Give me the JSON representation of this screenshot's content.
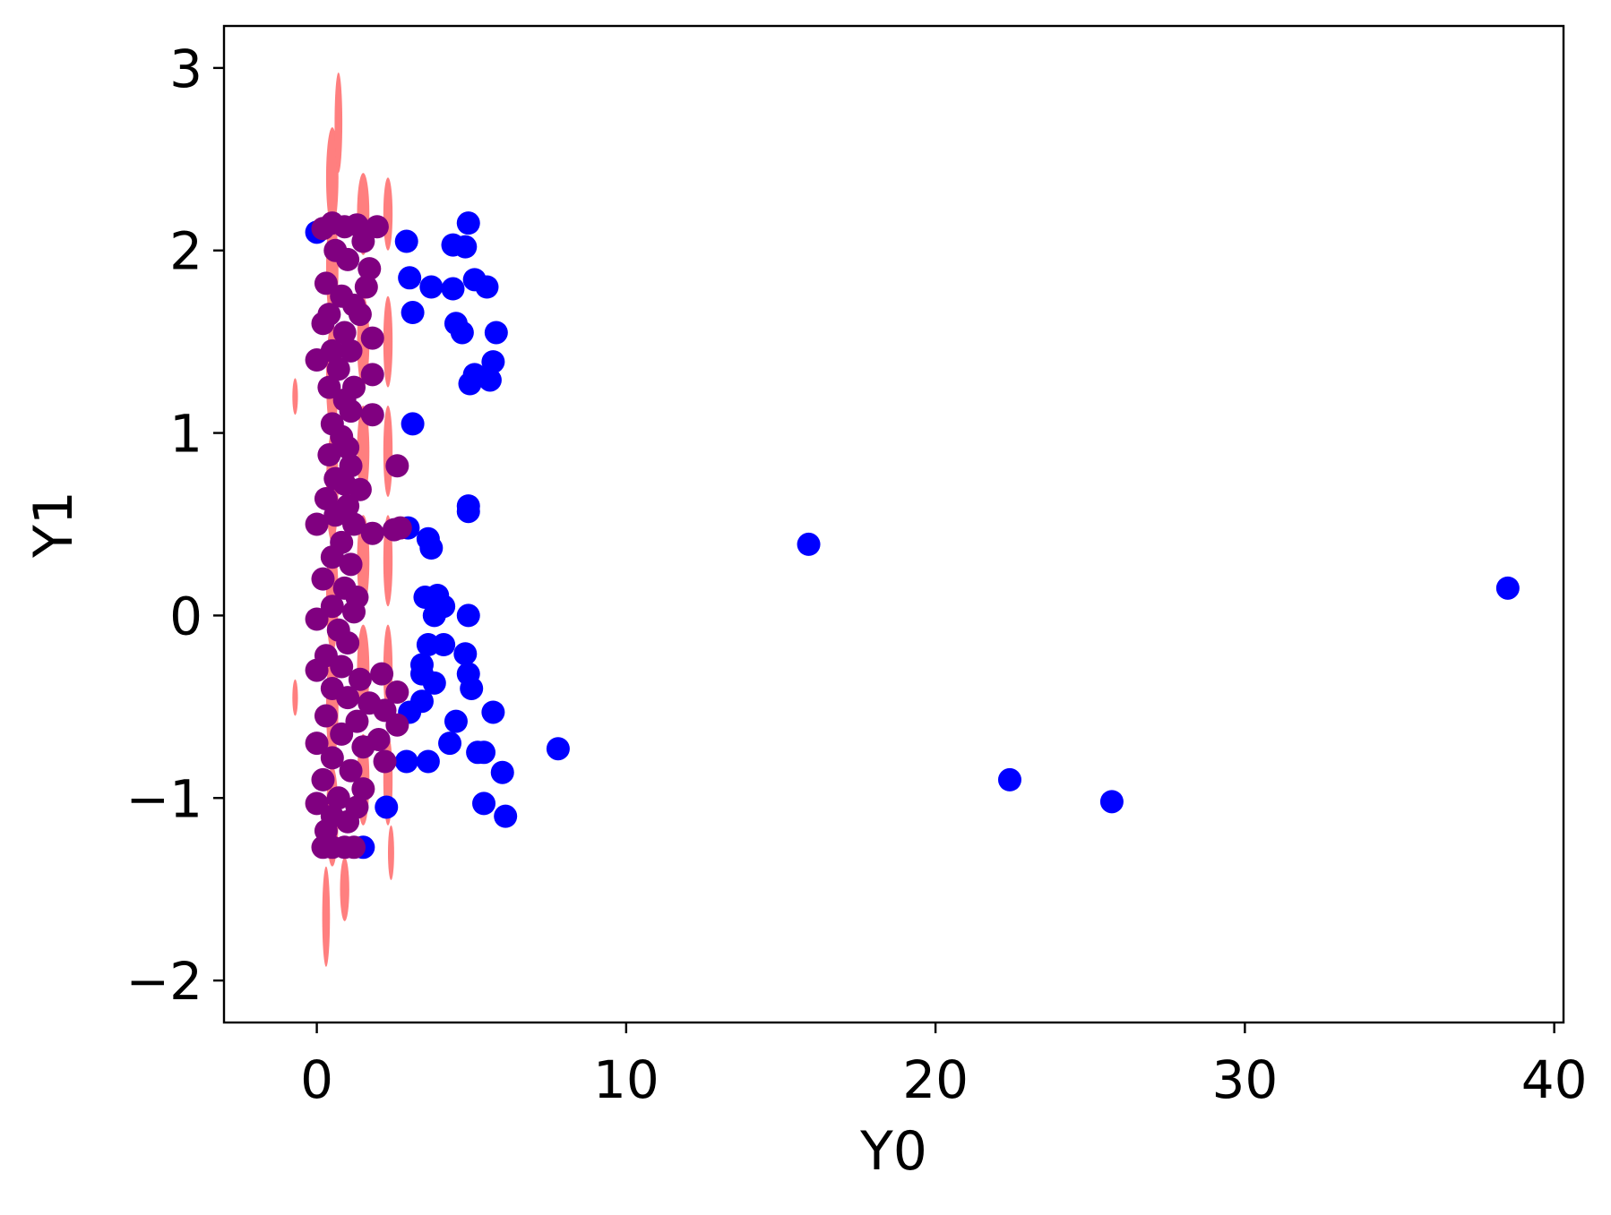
{
  "chart_data": {
    "type": "scatter",
    "title": "",
    "xlabel": "Y0",
    "ylabel": "Y1",
    "xlim": [
      -3.0,
      40.3
    ],
    "ylim": [
      -2.23,
      3.23
    ],
    "xticks": [
      0,
      10,
      20,
      30,
      40
    ],
    "xtick_labels": [
      "0",
      "10",
      "20",
      "30",
      "40"
    ],
    "yticks": [
      -2,
      -1,
      0,
      1,
      2,
      3
    ],
    "ytick_labels": [
      "−2",
      "−1",
      "0",
      "1",
      "2",
      "3"
    ],
    "grid": false,
    "legend": "none",
    "colors": {
      "blue_points": "#0000ff",
      "red_ellipses": "#ff7f7f",
      "purple_points": "#800080",
      "axes": "#000000",
      "background": "#ffffff"
    },
    "series": [
      {
        "marker": "ellipse",
        "color": "#ff7f7f",
        "points": [
          {
            "x": 0.5,
            "y": 2.4,
            "w": 0.4,
            "h": 0.55
          },
          {
            "x": 0.5,
            "y": 1.9,
            "w": 0.4,
            "h": 0.6
          },
          {
            "x": 0.5,
            "y": 1.3,
            "w": 0.4,
            "h": 0.6
          },
          {
            "x": 0.5,
            "y": 0.7,
            "w": 0.4,
            "h": 0.6
          },
          {
            "x": 0.5,
            "y": 0.1,
            "w": 0.4,
            "h": 0.6
          },
          {
            "x": 0.5,
            "y": -0.5,
            "w": 0.4,
            "h": 0.6
          },
          {
            "x": 0.5,
            "y": -1.1,
            "w": 0.4,
            "h": 0.55
          },
          {
            "x": 0.3,
            "y": -1.65,
            "w": 0.25,
            "h": 0.55
          },
          {
            "x": 0.9,
            "y": -1.5,
            "w": 0.3,
            "h": 0.35
          },
          {
            "x": 0.7,
            "y": 2.7,
            "w": 0.25,
            "h": 0.55
          },
          {
            "x": 1.5,
            "y": 2.2,
            "w": 0.4,
            "h": 0.45
          },
          {
            "x": 1.5,
            "y": 1.5,
            "w": 0.4,
            "h": 0.5
          },
          {
            "x": 1.5,
            "y": 0.9,
            "w": 0.4,
            "h": 0.5
          },
          {
            "x": 1.5,
            "y": 0.3,
            "w": 0.4,
            "h": 0.5
          },
          {
            "x": 1.5,
            "y": -0.3,
            "w": 0.4,
            "h": 0.5
          },
          {
            "x": 1.5,
            "y": -0.9,
            "w": 0.4,
            "h": 0.5
          },
          {
            "x": 2.3,
            "y": 2.2,
            "w": 0.3,
            "h": 0.4
          },
          {
            "x": 2.3,
            "y": 1.5,
            "w": 0.3,
            "h": 0.5
          },
          {
            "x": 2.3,
            "y": 0.9,
            "w": 0.3,
            "h": 0.5
          },
          {
            "x": 2.3,
            "y": 0.3,
            "w": 0.3,
            "h": 0.5
          },
          {
            "x": 2.3,
            "y": -0.3,
            "w": 0.3,
            "h": 0.5
          },
          {
            "x": 2.3,
            "y": -0.9,
            "w": 0.3,
            "h": 0.5
          },
          {
            "x": 2.4,
            "y": -1.3,
            "w": 0.2,
            "h": 0.3
          },
          {
            "x": -0.7,
            "y": 1.2,
            "w": 0.18,
            "h": 0.2
          },
          {
            "x": -0.7,
            "y": -0.45,
            "w": 0.18,
            "h": 0.2
          }
        ]
      },
      {
        "marker": "circle",
        "color": "#0000ff",
        "points": [
          {
            "x": 0.0,
            "y": 2.1
          },
          {
            "x": 2.9,
            "y": 2.05
          },
          {
            "x": 4.4,
            "y": 2.03
          },
          {
            "x": 4.9,
            "y": 2.15
          },
          {
            "x": 4.8,
            "y": 2.02
          },
          {
            "x": 3.0,
            "y": 1.85
          },
          {
            "x": 3.7,
            "y": 1.8
          },
          {
            "x": 4.4,
            "y": 1.79
          },
          {
            "x": 5.1,
            "y": 1.84
          },
          {
            "x": 5.5,
            "y": 1.8
          },
          {
            "x": 3.1,
            "y": 1.66
          },
          {
            "x": 4.5,
            "y": 1.6
          },
          {
            "x": 4.7,
            "y": 1.55
          },
          {
            "x": 5.8,
            "y": 1.55
          },
          {
            "x": 5.7,
            "y": 1.39
          },
          {
            "x": 5.1,
            "y": 1.32
          },
          {
            "x": 4.95,
            "y": 1.27
          },
          {
            "x": 5.6,
            "y": 1.29
          },
          {
            "x": 3.1,
            "y": 1.05
          },
          {
            "x": 4.9,
            "y": 0.6
          },
          {
            "x": 4.9,
            "y": 0.57
          },
          {
            "x": 2.95,
            "y": 0.48
          },
          {
            "x": 3.6,
            "y": 0.42
          },
          {
            "x": 3.7,
            "y": 0.37
          },
          {
            "x": 15.9,
            "y": 0.39
          },
          {
            "x": 38.5,
            "y": 0.15
          },
          {
            "x": 3.5,
            "y": 0.1
          },
          {
            "x": 3.9,
            "y": 0.11
          },
          {
            "x": 4.1,
            "y": 0.05
          },
          {
            "x": 3.8,
            "y": 0.0
          },
          {
            "x": 4.9,
            "y": 0.0
          },
          {
            "x": 3.6,
            "y": -0.16
          },
          {
            "x": 4.1,
            "y": -0.16
          },
          {
            "x": 4.8,
            "y": -0.21
          },
          {
            "x": 3.4,
            "y": -0.27
          },
          {
            "x": 3.4,
            "y": -0.32
          },
          {
            "x": 3.8,
            "y": -0.37
          },
          {
            "x": 4.9,
            "y": -0.32
          },
          {
            "x": 5.0,
            "y": -0.4
          },
          {
            "x": 3.4,
            "y": -0.47
          },
          {
            "x": 3.0,
            "y": -0.53
          },
          {
            "x": 5.7,
            "y": -0.53
          },
          {
            "x": 4.5,
            "y": -0.58
          },
          {
            "x": 4.3,
            "y": -0.7
          },
          {
            "x": 7.8,
            "y": -0.73
          },
          {
            "x": 5.2,
            "y": -0.75
          },
          {
            "x": 5.4,
            "y": -0.75
          },
          {
            "x": 2.9,
            "y": -0.8
          },
          {
            "x": 3.6,
            "y": -0.8
          },
          {
            "x": 6.0,
            "y": -0.86
          },
          {
            "x": 22.4,
            "y": -0.9
          },
          {
            "x": 25.7,
            "y": -1.02
          },
          {
            "x": 5.4,
            "y": -1.03
          },
          {
            "x": 6.1,
            "y": -1.1
          },
          {
            "x": 2.25,
            "y": -1.05
          },
          {
            "x": 1.5,
            "y": -1.27
          }
        ]
      },
      {
        "marker": "circle",
        "color": "#800080",
        "points": [
          {
            "x": 0.2,
            "y": 2.12
          },
          {
            "x": 0.5,
            "y": 2.15
          },
          {
            "x": 0.9,
            "y": 2.13
          },
          {
            "x": 1.3,
            "y": 2.14
          },
          {
            "x": 1.95,
            "y": 2.13
          },
          {
            "x": 1.5,
            "y": 2.05
          },
          {
            "x": 0.6,
            "y": 2.0
          },
          {
            "x": 1.0,
            "y": 1.95
          },
          {
            "x": 1.7,
            "y": 1.9
          },
          {
            "x": 0.3,
            "y": 1.82
          },
          {
            "x": 1.6,
            "y": 1.8
          },
          {
            "x": 0.8,
            "y": 1.75
          },
          {
            "x": 1.2,
            "y": 1.7
          },
          {
            "x": 0.4,
            "y": 1.65
          },
          {
            "x": 1.4,
            "y": 1.65
          },
          {
            "x": 0.2,
            "y": 1.6
          },
          {
            "x": 0.9,
            "y": 1.55
          },
          {
            "x": 1.8,
            "y": 1.52
          },
          {
            "x": 0.5,
            "y": 1.45
          },
          {
            "x": 1.1,
            "y": 1.45
          },
          {
            "x": 0.0,
            "y": 1.4
          },
          {
            "x": 0.7,
            "y": 1.35
          },
          {
            "x": 1.8,
            "y": 1.32
          },
          {
            "x": 0.4,
            "y": 1.25
          },
          {
            "x": 1.2,
            "y": 1.25
          },
          {
            "x": 0.9,
            "y": 1.18
          },
          {
            "x": 1.1,
            "y": 1.12
          },
          {
            "x": 1.8,
            "y": 1.1
          },
          {
            "x": 0.5,
            "y": 1.05
          },
          {
            "x": 0.8,
            "y": 0.98
          },
          {
            "x": 1.0,
            "y": 0.92
          },
          {
            "x": 0.4,
            "y": 0.88
          },
          {
            "x": 1.1,
            "y": 0.82
          },
          {
            "x": 2.6,
            "y": 0.82
          },
          {
            "x": 0.6,
            "y": 0.75
          },
          {
            "x": 0.9,
            "y": 0.72
          },
          {
            "x": 1.4,
            "y": 0.69
          },
          {
            "x": 0.3,
            "y": 0.64
          },
          {
            "x": 1.0,
            "y": 0.6
          },
          {
            "x": 0.6,
            "y": 0.55
          },
          {
            "x": 0.0,
            "y": 0.5
          },
          {
            "x": 1.2,
            "y": 0.5
          },
          {
            "x": 1.8,
            "y": 0.45
          },
          {
            "x": 2.5,
            "y": 0.47
          },
          {
            "x": 2.7,
            "y": 0.48
          },
          {
            "x": 0.8,
            "y": 0.4
          },
          {
            "x": 0.5,
            "y": 0.32
          },
          {
            "x": 1.1,
            "y": 0.28
          },
          {
            "x": 0.2,
            "y": 0.2
          },
          {
            "x": 0.9,
            "y": 0.15
          },
          {
            "x": 1.3,
            "y": 0.1
          },
          {
            "x": 0.5,
            "y": 0.05
          },
          {
            "x": 1.2,
            "y": 0.02
          },
          {
            "x": 0.0,
            "y": -0.02
          },
          {
            "x": 0.7,
            "y": -0.08
          },
          {
            "x": 1.0,
            "y": -0.15
          },
          {
            "x": 0.3,
            "y": -0.22
          },
          {
            "x": 0.8,
            "y": -0.28
          },
          {
            "x": 0.0,
            "y": -0.3
          },
          {
            "x": 2.1,
            "y": -0.32
          },
          {
            "x": 1.4,
            "y": -0.35
          },
          {
            "x": 0.5,
            "y": -0.4
          },
          {
            "x": 2.6,
            "y": -0.42
          },
          {
            "x": 1.0,
            "y": -0.45
          },
          {
            "x": 1.7,
            "y": -0.48
          },
          {
            "x": 2.2,
            "y": -0.52
          },
          {
            "x": 0.3,
            "y": -0.55
          },
          {
            "x": 1.3,
            "y": -0.58
          },
          {
            "x": 2.6,
            "y": -0.6
          },
          {
            "x": 0.8,
            "y": -0.65
          },
          {
            "x": 2.0,
            "y": -0.68
          },
          {
            "x": 0.0,
            "y": -0.7
          },
          {
            "x": 1.5,
            "y": -0.72
          },
          {
            "x": 0.5,
            "y": -0.78
          },
          {
            "x": 2.2,
            "y": -0.8
          },
          {
            "x": 1.1,
            "y": -0.85
          },
          {
            "x": 0.2,
            "y": -0.9
          },
          {
            "x": 1.5,
            "y": -0.95
          },
          {
            "x": 0.7,
            "y": -1.0
          },
          {
            "x": 0.0,
            "y": -1.03
          },
          {
            "x": 1.3,
            "y": -1.05
          },
          {
            "x": 0.5,
            "y": -1.1
          },
          {
            "x": 1.0,
            "y": -1.13
          },
          {
            "x": 0.3,
            "y": -1.18
          },
          {
            "x": 0.2,
            "y": -1.27
          },
          {
            "x": 0.5,
            "y": -1.27
          },
          {
            "x": 0.9,
            "y": -1.27
          },
          {
            "x": 1.2,
            "y": -1.27
          }
        ]
      }
    ]
  }
}
